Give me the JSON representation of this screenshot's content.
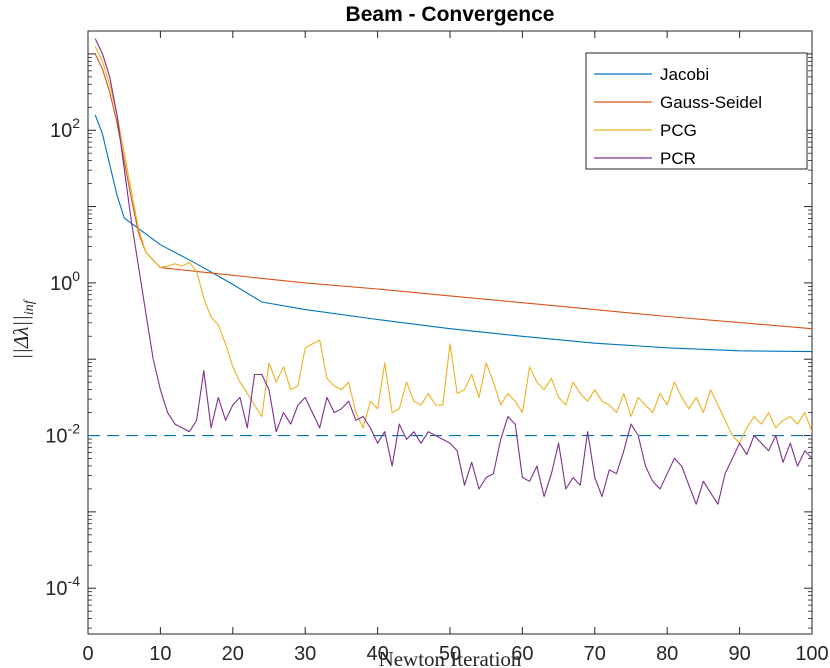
{
  "chart_data": {
    "type": "line",
    "title": "Beam - Convergence",
    "xlabel": "Newton Iteration",
    "ylabel": "||Δλ||",
    "ylabel_sub": "inf",
    "yscale": "log",
    "xlim": [
      0,
      100
    ],
    "ylim_log10": [
      -4.6,
      3.3
    ],
    "xticks": [
      0,
      10,
      20,
      30,
      40,
      50,
      60,
      70,
      80,
      90,
      100
    ],
    "xtick_labels": [
      "0",
      "10",
      "20",
      "30",
      "40",
      "50",
      "60",
      "70",
      "80",
      "90",
      "100"
    ],
    "yticks_log10": [
      -4,
      -2,
      0,
      2
    ],
    "ytick_labels": [
      {
        "base": "10",
        "exp": "-4"
      },
      {
        "base": "10",
        "exp": "-2"
      },
      {
        "base": "10",
        "exp": "0"
      },
      {
        "base": "10",
        "exp": "2"
      }
    ],
    "legend_position": "top-right",
    "threshold": {
      "value": 0.01,
      "style": "dashed",
      "color": "#0072BD"
    },
    "series": [
      {
        "name": "Jacobi",
        "color": "#0072BD",
        "x": [
          1,
          2,
          3,
          4,
          5,
          10,
          15,
          20,
          24,
          30,
          40,
          50,
          60,
          70,
          80,
          90,
          100
        ],
        "y": [
          2.2,
          1.95,
          1.55,
          1.15,
          0.85,
          0.5,
          0.25,
          -0.02,
          -0.25,
          -0.35,
          -0.48,
          -0.6,
          -0.7,
          -0.79,
          -0.85,
          -0.89,
          -0.9
        ]
      },
      {
        "name": "Gauss-Seidel",
        "color": "#D95319",
        "x": [
          1,
          2,
          3,
          4,
          5,
          6,
          7,
          8,
          10,
          15,
          20,
          30,
          40,
          50,
          60,
          70,
          80,
          90,
          100
        ],
        "y": [
          3.0,
          2.8,
          2.5,
          2.1,
          1.6,
          1.1,
          0.65,
          0.4,
          0.2,
          0.15,
          0.1,
          0.0,
          -0.08,
          -0.17,
          -0.26,
          -0.35,
          -0.44,
          -0.52,
          -0.6
        ]
      },
      {
        "name": "PCG",
        "color": "#EDB120",
        "x": [
          1,
          2,
          3,
          4,
          5,
          6,
          7,
          8,
          9,
          10,
          11,
          12,
          13,
          14,
          15,
          16,
          17,
          18,
          19,
          20,
          21,
          22,
          23,
          24,
          25,
          26,
          27,
          28,
          29,
          30,
          31,
          32,
          33,
          34,
          35,
          36,
          37,
          38,
          39,
          40,
          41,
          42,
          43,
          44,
          45,
          46,
          47,
          48,
          49,
          50,
          51,
          52,
          53,
          54,
          55,
          56,
          57,
          58,
          59,
          60,
          61,
          62,
          63,
          64,
          65,
          66,
          67,
          68,
          69,
          70,
          71,
          72,
          73,
          74,
          75,
          76,
          77,
          78,
          79,
          80,
          81,
          82,
          83,
          84,
          85,
          86,
          87,
          88,
          89,
          90,
          91,
          92,
          93,
          94,
          95,
          96,
          97,
          98,
          99,
          100
        ],
        "y": [
          3.1,
          2.9,
          2.6,
          2.2,
          1.7,
          1.2,
          0.7,
          0.4,
          0.3,
          0.2,
          0.22,
          0.25,
          0.22,
          0.27,
          0.15,
          -0.2,
          -0.45,
          -0.55,
          -0.8,
          -1.1,
          -1.3,
          -1.45,
          -1.6,
          -1.75,
          -1.05,
          -1.3,
          -1.1,
          -1.4,
          -1.35,
          -0.85,
          -0.8,
          -0.75,
          -1.25,
          -1.35,
          -1.4,
          -1.3,
          -1.7,
          -1.9,
          -1.55,
          -1.65,
          -1.05,
          -1.7,
          -1.65,
          -1.3,
          -1.55,
          -1.6,
          -1.45,
          -1.6,
          -1.6,
          -0.8,
          -1.45,
          -1.4,
          -1.2,
          -1.5,
          -1.05,
          -1.3,
          -1.6,
          -1.45,
          -1.55,
          -1.7,
          -1.1,
          -1.3,
          -1.4,
          -1.25,
          -1.5,
          -1.6,
          -1.3,
          -1.45,
          -1.55,
          -1.4,
          -1.55,
          -1.6,
          -1.7,
          -1.45,
          -1.75,
          -1.5,
          -1.6,
          -1.7,
          -1.45,
          -1.6,
          -1.3,
          -1.5,
          -1.65,
          -1.5,
          -1.7,
          -1.4,
          -1.6,
          -1.8,
          -2.0,
          -2.1,
          -1.9,
          -1.75,
          -1.85,
          -1.7,
          -1.9,
          -1.8,
          -1.75,
          -1.85,
          -1.7,
          -1.95
        ]
      },
      {
        "name": "PCR",
        "color": "#7E2F8E",
        "x": [
          1,
          2,
          3,
          4,
          5,
          6,
          7,
          8,
          9,
          10,
          11,
          12,
          13,
          14,
          15,
          16,
          17,
          18,
          19,
          20,
          21,
          22,
          23,
          24,
          25,
          26,
          27,
          28,
          29,
          30,
          31,
          32,
          33,
          34,
          35,
          36,
          37,
          38,
          39,
          40,
          41,
          42,
          43,
          44,
          45,
          46,
          47,
          48,
          49,
          50,
          51,
          52,
          53,
          54,
          55,
          56,
          57,
          58,
          59,
          60,
          61,
          62,
          63,
          64,
          65,
          66,
          67,
          68,
          69,
          70,
          71,
          72,
          73,
          74,
          75,
          76,
          77,
          78,
          79,
          80,
          81,
          82,
          83,
          84,
          85,
          86,
          87,
          88,
          89,
          90,
          91,
          92,
          93,
          94,
          95,
          96,
          97,
          98,
          99,
          100
        ],
        "y": [
          3.2,
          3.0,
          2.7,
          2.2,
          1.5,
          0.8,
          0.2,
          -0.4,
          -1.0,
          -1.4,
          -1.7,
          -1.85,
          -1.9,
          -1.95,
          -1.8,
          -1.15,
          -1.9,
          -1.5,
          -1.8,
          -1.6,
          -1.5,
          -1.9,
          -1.2,
          -1.2,
          -1.4,
          -1.95,
          -1.7,
          -1.85,
          -1.6,
          -1.5,
          -1.7,
          -1.9,
          -1.5,
          -1.7,
          -1.65,
          -1.55,
          -1.8,
          -1.75,
          -1.9,
          -2.1,
          -1.95,
          -2.4,
          -1.85,
          -2.05,
          -1.95,
          -2.1,
          -1.95,
          -2.0,
          -2.05,
          -2.1,
          -2.2,
          -2.65,
          -2.35,
          -2.7,
          -2.55,
          -2.5,
          -2.05,
          -1.75,
          -1.85,
          -2.55,
          -2.6,
          -2.4,
          -2.8,
          -2.5,
          -2.1,
          -2.7,
          -2.55,
          -2.65,
          -1.95,
          -2.55,
          -2.8,
          -2.45,
          -2.5,
          -2.2,
          -1.85,
          -2.0,
          -2.4,
          -2.6,
          -2.7,
          -2.5,
          -2.3,
          -2.4,
          -2.65,
          -2.9,
          -2.6,
          -2.75,
          -2.9,
          -2.5,
          -2.3,
          -2.1,
          -2.25,
          -2.0,
          -2.1,
          -2.2,
          -2.0,
          -2.35,
          -2.1,
          -2.4,
          -2.2,
          -2.3
        ]
      }
    ]
  }
}
